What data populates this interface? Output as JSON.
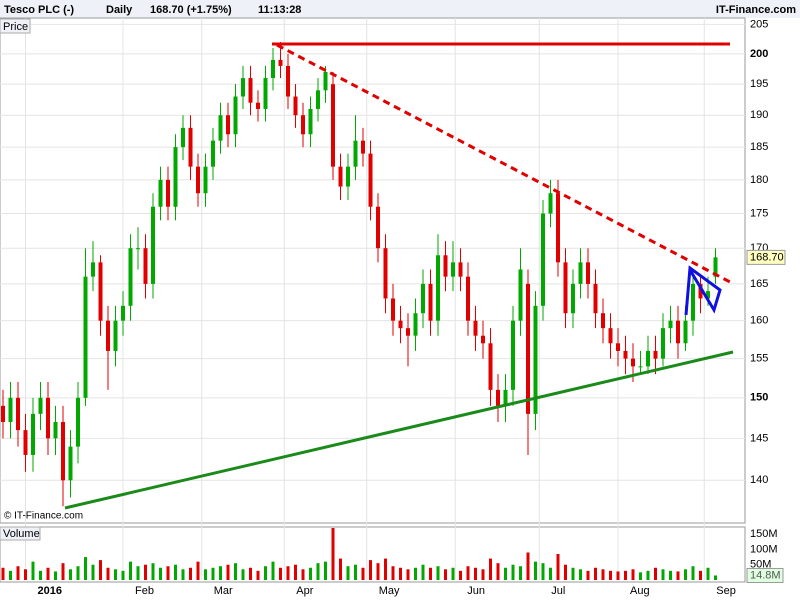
{
  "header": {
    "symbol": "Tesco PLC (-)",
    "period": "Daily",
    "change": "168.70 (+1.75%)",
    "time": "11:13:28",
    "site": "IT-Finance.com"
  },
  "chart_data": {
    "type": "candlestick",
    "panel_label": "Price",
    "copyright": "© IT-Finance.com",
    "log_scale": true,
    "grid": true,
    "up_color": "#00a800",
    "down_color": "#e00000",
    "categories": [
      null,
      null,
      null,
      null,
      null,
      null,
      null,
      null,
      null,
      null,
      null,
      null,
      null,
      null,
      null,
      null,
      null,
      null,
      null,
      null,
      null,
      null,
      null,
      null,
      null,
      null,
      null,
      null,
      null,
      null,
      null,
      null,
      null,
      null,
      null,
      null,
      null,
      null,
      null,
      null,
      null,
      null,
      null,
      null,
      null,
      null,
      null,
      null,
      null,
      null,
      null,
      null,
      null,
      null,
      null,
      null,
      null,
      null,
      null,
      null,
      null,
      null,
      null,
      null,
      null,
      null,
      null,
      null,
      null,
      null,
      null,
      null,
      null,
      null,
      null,
      null,
      null,
      null,
      null,
      null,
      null,
      null,
      null,
      null,
      null,
      null,
      null,
      null,
      null,
      null,
      null,
      null,
      null,
      null,
      null,
      null
    ],
    "open": [
      149,
      147,
      150,
      146,
      143,
      148,
      150,
      145,
      147,
      140,
      144,
      150,
      166,
      168,
      160,
      156,
      160,
      162,
      170,
      170,
      165,
      176,
      180,
      176,
      185,
      188,
      182,
      178,
      182,
      186,
      190,
      187,
      193,
      196,
      192,
      191,
      196,
      199,
      198,
      193,
      190,
      187,
      191,
      194,
      195,
      182,
      179,
      182,
      186,
      184,
      176,
      170,
      163,
      160,
      159,
      158,
      161,
      165,
      160,
      169,
      166,
      168,
      166,
      160,
      158,
      157,
      151,
      149,
      151,
      160,
      165,
      148,
      162,
      175,
      178,
      168,
      161,
      165,
      168,
      165,
      161,
      159,
      157,
      156,
      155,
      154,
      154,
      156,
      155,
      159,
      160,
      157,
      160,
      165,
      163,
      166
    ],
    "high": [
      151,
      152,
      152,
      148,
      150,
      152,
      152,
      149,
      149,
      146,
      152,
      170,
      171,
      169,
      162,
      162,
      164,
      172,
      173,
      172,
      178,
      182,
      182,
      187,
      190,
      190,
      184,
      184,
      188,
      192,
      192,
      195,
      198,
      198,
      194,
      198,
      201,
      202,
      200,
      195,
      192,
      193,
      196,
      198,
      197,
      184,
      184,
      190,
      188,
      186,
      178,
      172,
      165,
      162,
      161,
      163,
      167,
      167,
      172,
      171,
      171,
      170,
      168,
      162,
      160,
      159,
      153,
      153,
      162,
      170,
      167,
      164,
      177,
      180,
      180,
      170,
      167,
      170,
      170,
      167,
      163,
      161,
      159,
      158,
      157,
      156,
      158,
      158,
      161,
      162,
      162,
      162,
      167,
      166,
      166,
      170
    ],
    "low": [
      145,
      145,
      144,
      141,
      141,
      146,
      143,
      143,
      137,
      138,
      142,
      149,
      164,
      158,
      151,
      154,
      158,
      160,
      167,
      163,
      163,
      174,
      174,
      174,
      183,
      180,
      176,
      176,
      180,
      184,
      185,
      185,
      191,
      190,
      189,
      189,
      194,
      196,
      191,
      188,
      185,
      185,
      189,
      192,
      180,
      177,
      177,
      180,
      182,
      174,
      168,
      161,
      158,
      157,
      154,
      156,
      159,
      158,
      158,
      164,
      164,
      164,
      158,
      156,
      155,
      149,
      147,
      147,
      149,
      158,
      143,
      146,
      160,
      173,
      166,
      159,
      159,
      163,
      163,
      159,
      157,
      155,
      154,
      153,
      152,
      153,
      153,
      153,
      154,
      157,
      155,
      156,
      158,
      161,
      162,
      165
    ],
    "close": [
      147,
      150,
      146,
      143,
      148,
      150,
      145,
      147,
      140,
      144,
      150,
      166,
      168,
      160,
      156,
      160,
      162,
      170,
      170,
      165,
      176,
      180,
      176,
      185,
      188,
      182,
      178,
      182,
      186,
      190,
      187,
      193,
      196,
      192,
      191,
      196,
      199,
      198,
      193,
      190,
      187,
      191,
      194,
      197,
      182,
      179,
      182,
      186,
      184,
      176,
      170,
      163,
      160,
      159,
      158,
      161,
      165,
      160,
      169,
      166,
      168,
      166,
      160,
      158,
      157,
      151,
      149,
      151,
      160,
      167,
      148,
      162,
      175,
      178,
      168,
      161,
      165,
      168,
      165,
      161,
      159,
      157,
      156,
      155,
      154,
      154,
      156,
      155,
      159,
      160,
      157,
      160,
      165,
      163,
      164,
      168.7
    ],
    "last_price": {
      "value": 168.7,
      "label": "168.70"
    },
    "ylim": [
      135.2,
      206.1
    ],
    "yticks": [
      205,
      200,
      195,
      190,
      185,
      180,
      175,
      170,
      165,
      160,
      155,
      150,
      145,
      140
    ],
    "xticks": [
      {
        "value": 3,
        "label": "2016"
      },
      {
        "value": 16,
        "label": "Feb"
      },
      {
        "value": 26.5,
        "label": "Mar"
      },
      {
        "value": 37.5,
        "label": "Apr"
      },
      {
        "value": 48.5,
        "label": "May"
      },
      {
        "value": 60.3,
        "label": "Jun"
      },
      {
        "value": 71.5,
        "label": "Jul"
      },
      {
        "value": 82,
        "label": "Aug"
      },
      {
        "value": 93.5,
        "label": "Sep"
      }
    ],
    "volume": {
      "label": "Volume",
      "ylim": [
        0,
        170
      ],
      "yticks": [
        {
          "value": 150,
          "label": "150M"
        },
        {
          "value": 100,
          "label": "100M"
        },
        {
          "value": 50,
          "label": "50M"
        }
      ],
      "last": {
        "value": 14.8,
        "label": "14.8M"
      },
      "values": [
        40,
        30,
        45,
        35,
        60,
        30,
        40,
        28,
        55,
        35,
        45,
        75,
        50,
        65,
        40,
        35,
        30,
        60,
        45,
        50,
        55,
        40,
        45,
        50,
        35,
        40,
        60,
        35,
        40,
        45,
        50,
        55,
        35,
        40,
        30,
        45,
        60,
        40,
        45,
        50,
        35,
        40,
        55,
        60,
        170,
        70,
        45,
        50,
        40,
        65,
        55,
        70,
        45,
        40,
        35,
        40,
        50,
        40,
        45,
        35,
        40,
        30,
        45,
        40,
        35,
        70,
        55,
        40,
        50,
        45,
        90,
        60,
        55,
        40,
        85,
        50,
        40,
        35,
        30,
        40,
        35,
        30,
        28,
        30,
        35,
        25,
        30,
        40,
        35,
        30,
        28,
        35,
        45,
        30,
        40,
        14.8
      ]
    }
  }
}
